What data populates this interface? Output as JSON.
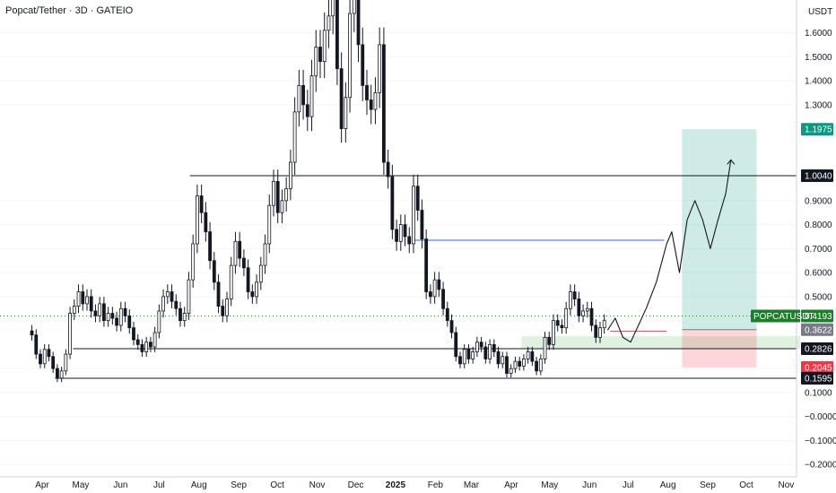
{
  "header": {
    "title": "Popcat/Tether · 3D · GATEIO"
  },
  "chart_data": {
    "type": "candlestick",
    "currency_label": "USDT",
    "ylim": [
      -0.23,
      1.8
    ],
    "y_ticks": [
      1.6,
      1.5,
      1.4,
      1.3,
      0.9,
      0.8,
      0.7,
      0.6,
      0.5,
      0.2,
      0.1,
      0.0,
      -0.1,
      -0.2
    ],
    "y_tick_labels": [
      "1.6000",
      "1.5000",
      "1.4000",
      "1.3000",
      "0.9000",
      "0.8000",
      "0.7000",
      "0.6000",
      "0.5000",
      "0.2000",
      "0.1000",
      "−0.0000",
      "−0.1000",
      "−0.2000"
    ],
    "x_labels": [
      "Apr",
      "May",
      "Jun",
      "Jul",
      "Aug",
      "Sep",
      "Oct",
      "Nov",
      "Dec",
      "2025",
      "Feb",
      "Mar",
      "Apr",
      "May",
      "Jun",
      "Jul",
      "Aug",
      "Sep",
      "Oct",
      "Nov"
    ],
    "x_label_index": [
      0,
      30,
      61,
      91,
      122,
      153,
      183,
      214,
      244,
      275,
      306,
      334,
      365,
      395,
      426,
      456,
      487,
      518,
      548,
      579
    ],
    "x_range_days": [
      -10,
      590
    ],
    "price_tags": [
      {
        "label": "1.1975",
        "value": 1.1975,
        "color": "#089981"
      },
      {
        "label": "1.0040",
        "value": 1.004,
        "color": "#131722"
      },
      {
        "label": "0.4193",
        "value": 0.4193,
        "color": "#1e7d2c",
        "name": "POPCATUSDT"
      },
      {
        "label": "0.3622",
        "value": 0.3622,
        "color": "#787b86"
      },
      {
        "label": "0.2826",
        "value": 0.2826,
        "color": "#131722"
      },
      {
        "label": "0.2045",
        "value": 0.2045,
        "color": "#f23645"
      },
      {
        "label": "0.1595",
        "value": 0.1595,
        "color": "#131722"
      }
    ],
    "levels": [
      {
        "value": 1.004,
        "start_day": 115,
        "end_day": 590
      },
      {
        "value": 0.2826,
        "start_day": 24,
        "end_day": 590
      },
      {
        "value": 0.1595,
        "start_day": 10,
        "end_day": 590
      },
      {
        "value": 0.735,
        "start_day": 288,
        "end_day": 484,
        "color": "#2962ff"
      }
    ],
    "position": {
      "start_day": 498,
      "end_day": 556,
      "entry": 0.3622,
      "target": 1.1975,
      "stop": 0.2045
    },
    "demand_zone": {
      "start_day": 373,
      "end_day": 590,
      "low": 0.2826,
      "high": 0.335
    },
    "current_price": 0.4193,
    "closes": [
      0.34,
      0.26,
      0.22,
      0.28,
      0.25,
      0.2,
      0.16,
      0.19,
      0.26,
      0.43,
      0.46,
      0.52,
      0.47,
      0.5,
      0.44,
      0.42,
      0.47,
      0.4,
      0.43,
      0.41,
      0.38,
      0.45,
      0.42,
      0.37,
      0.32,
      0.3,
      0.27,
      0.31,
      0.29,
      0.35,
      0.44,
      0.5,
      0.52,
      0.48,
      0.45,
      0.4,
      0.43,
      0.57,
      0.72,
      0.92,
      0.85,
      0.77,
      0.65,
      0.56,
      0.46,
      0.42,
      0.49,
      0.63,
      0.73,
      0.66,
      0.62,
      0.52,
      0.5,
      0.56,
      0.63,
      0.72,
      0.88,
      0.98,
      0.85,
      0.9,
      0.95,
      1.06,
      1.27,
      1.38,
      1.3,
      1.25,
      1.42,
      1.54,
      1.48,
      1.61,
      1.67,
      1.75,
      1.45,
      1.2,
      1.33,
      1.68,
      1.78,
      1.55,
      1.38,
      1.32,
      1.28,
      1.35,
      1.55,
      1.06,
      1.0,
      0.78,
      0.73,
      0.8,
      0.75,
      0.72,
      0.96,
      0.86,
      0.74,
      0.52,
      0.5,
      0.57,
      0.53,
      0.45,
      0.4,
      0.35,
      0.25,
      0.22,
      0.28,
      0.24,
      0.27,
      0.31,
      0.29,
      0.24,
      0.3,
      0.27,
      0.22,
      0.25,
      0.18,
      0.2,
      0.23,
      0.21,
      0.24,
      0.27,
      0.23,
      0.19,
      0.24,
      0.33,
      0.3,
      0.4,
      0.38,
      0.37,
      0.45,
      0.52,
      0.49,
      0.42,
      0.44,
      0.45,
      0.38,
      0.33,
      0.37,
      0.4
    ]
  }
}
